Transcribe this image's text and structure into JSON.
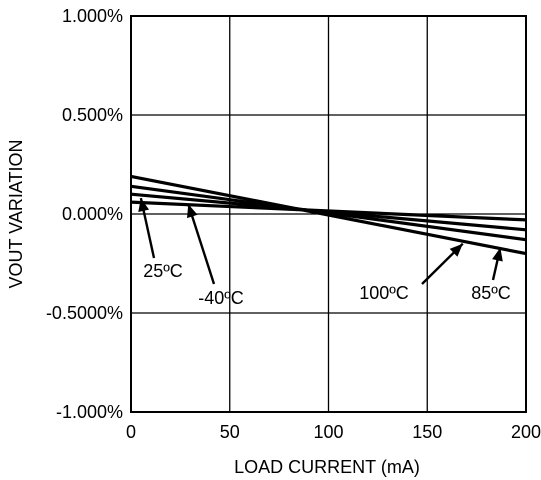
{
  "chart_data": {
    "type": "line",
    "xlabel": "LOAD CURRENT (mA)",
    "ylabel": "VOUT VARIATION",
    "xlim": [
      0,
      200
    ],
    "ylim": [
      -1.0,
      1.0
    ],
    "grid": true,
    "x_ticks": [
      {
        "value": 0,
        "label": "0"
      },
      {
        "value": 50,
        "label": "50"
      },
      {
        "value": 100,
        "label": "100"
      },
      {
        "value": 150,
        "label": "150"
      },
      {
        "value": 200,
        "label": "200"
      }
    ],
    "y_ticks": [
      {
        "value": 1.0,
        "label": "1.000%"
      },
      {
        "value": 0.5,
        "label": "0.500%"
      },
      {
        "value": 0.0,
        "label": "0.000%"
      },
      {
        "value": -0.5,
        "label": "-0.5000%"
      },
      {
        "value": -1.0,
        "label": "-1.000%"
      }
    ],
    "series": [
      {
        "name": "-40ºC",
        "x": [
          0,
          200
        ],
        "y": [
          0.06,
          -0.03
        ]
      },
      {
        "name": "25ºC",
        "x": [
          0,
          200
        ],
        "y": [
          0.1,
          -0.08
        ]
      },
      {
        "name": "100ºC",
        "x": [
          0,
          200
        ],
        "y": [
          0.14,
          -0.13
        ]
      },
      {
        "name": "85ºC",
        "x": [
          0,
          200
        ],
        "y": [
          0.19,
          -0.2
        ]
      }
    ],
    "annotations": [
      {
        "text": "25ºC",
        "series": "25ºC",
        "point": [
          5,
          0.08
        ]
      },
      {
        "text": "-40ºC",
        "series": "-40ºC",
        "point": [
          29,
          0.05
        ]
      },
      {
        "text": "100ºC",
        "series": "100ºC",
        "point": [
          168,
          -0.15
        ]
      },
      {
        "text": "85ºC",
        "series": "85ºC",
        "point": [
          187,
          -0.17
        ]
      }
    ]
  }
}
